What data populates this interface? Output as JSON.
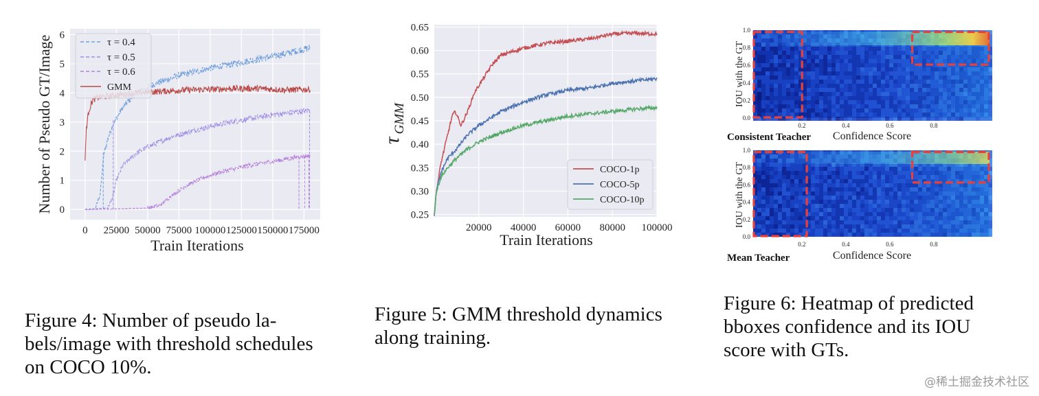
{
  "chart_data": [
    {
      "type": "line",
      "figure": "Figure 4",
      "xlabel": "Train Iterations",
      "ylabel": "Number of Pseudo GT/Image",
      "xlim": [
        -12000,
        188000
      ],
      "ylim": [
        -0.35,
        6.2
      ],
      "xticks": [
        0,
        25000,
        50000,
        75000,
        100000,
        125000,
        150000,
        175000
      ],
      "xtick_labels": [
        "0",
        "25000",
        "50000",
        "75000",
        "100000",
        "125000",
        "150000",
        "175000"
      ],
      "yticks": [
        0,
        1,
        2,
        3,
        4,
        5,
        6
      ],
      "ytick_labels": [
        "0",
        "1",
        "2",
        "3",
        "4",
        "5",
        "6"
      ],
      "grid": true,
      "background": "#eaeaf2",
      "legend_position": "top-left",
      "series": [
        {
          "name": "τ = 0.4",
          "color": "#6f9fdc",
          "dash": true,
          "x": [
            0,
            8000,
            12000,
            15000,
            18000,
            22000,
            30000,
            40000,
            55000,
            75000,
            100000,
            125000,
            150000,
            170000,
            180000
          ],
          "y": [
            0,
            0.02,
            0.5,
            1.9,
            2.4,
            2.9,
            3.5,
            3.95,
            4.3,
            4.6,
            4.85,
            5.05,
            5.25,
            5.45,
            5.55
          ]
        },
        {
          "name": "τ = 0.5",
          "color": "#a08de8",
          "dash": true,
          "x": [
            0,
            10000,
            18000,
            22000,
            25000,
            30000,
            40000,
            50000,
            70000,
            90000,
            110000,
            130000,
            150000,
            170000,
            180000
          ],
          "y": [
            0,
            0.02,
            0.05,
            0.4,
            1.0,
            1.5,
            1.9,
            2.15,
            2.5,
            2.75,
            2.95,
            3.1,
            3.25,
            3.35,
            3.4
          ]
        },
        {
          "name": "τ = 0.6",
          "color": "#b57fdb",
          "dash": true,
          "x": [
            0,
            30000,
            50000,
            60000,
            70000,
            80000,
            95000,
            110000,
            130000,
            150000,
            170000,
            180000
          ],
          "y": [
            0,
            0.02,
            0.05,
            0.15,
            0.5,
            0.8,
            1.1,
            1.3,
            1.5,
            1.65,
            1.8,
            1.85
          ]
        },
        {
          "name": "GMM",
          "color": "#b94a48",
          "dash": false,
          "x": [
            0,
            1000,
            3000,
            6000,
            10000,
            20000,
            40000,
            60000,
            80000,
            100000,
            120000,
            140000,
            160000,
            180000
          ],
          "y": [
            1.7,
            2.8,
            3.4,
            3.75,
            3.85,
            3.9,
            4.0,
            4.05,
            4.1,
            4.12,
            4.15,
            4.15,
            4.1,
            4.12
          ]
        }
      ]
    },
    {
      "type": "line",
      "figure": "Figure 5",
      "xlabel": "Train Iterations",
      "ylabel": "τ",
      "ylabel_sub": "GMM",
      "xlim": [
        0,
        100000
      ],
      "ylim": [
        0.245,
        0.655
      ],
      "xticks": [
        20000,
        40000,
        60000,
        80000,
        100000
      ],
      "xtick_labels": [
        "20000",
        "40000",
        "60000",
        "80000",
        "100000"
      ],
      "yticks": [
        0.25,
        0.3,
        0.35,
        0.4,
        0.45,
        0.5,
        0.55,
        0.6,
        0.65
      ],
      "ytick_labels": [
        "0.25",
        "0.30",
        "0.35",
        "0.40",
        "0.45",
        "0.50",
        "0.55",
        "0.60",
        "0.65"
      ],
      "grid": true,
      "background": "#eaeaf2",
      "legend_position": "bottom-right",
      "series": [
        {
          "name": "COCO-1p",
          "color": "#c44e52",
          "x": [
            0,
            1000,
            3000,
            6000,
            8000,
            9500,
            12000,
            15000,
            18000,
            22000,
            26000,
            30000,
            40000,
            50000,
            60000,
            70000,
            80000,
            90000,
            100000
          ],
          "y": [
            0.25,
            0.3,
            0.36,
            0.42,
            0.46,
            0.47,
            0.44,
            0.47,
            0.51,
            0.54,
            0.57,
            0.59,
            0.605,
            0.615,
            0.62,
            0.625,
            0.635,
            0.637,
            0.635
          ]
        },
        {
          "name": "COCO-5p",
          "color": "#4c72b0",
          "x": [
            0,
            1000,
            3000,
            6000,
            10000,
            15000,
            20000,
            30000,
            40000,
            50000,
            60000,
            70000,
            80000,
            90000,
            100000
          ],
          "y": [
            0.25,
            0.3,
            0.34,
            0.37,
            0.39,
            0.42,
            0.44,
            0.47,
            0.49,
            0.505,
            0.515,
            0.52,
            0.53,
            0.535,
            0.54
          ]
        },
        {
          "name": "COCO-10p",
          "color": "#55a868",
          "x": [
            0,
            1000,
            3000,
            6000,
            10000,
            15000,
            20000,
            30000,
            40000,
            50000,
            60000,
            70000,
            80000,
            90000,
            100000
          ],
          "y": [
            0.25,
            0.3,
            0.33,
            0.35,
            0.37,
            0.39,
            0.405,
            0.425,
            0.44,
            0.45,
            0.46,
            0.465,
            0.47,
            0.475,
            0.478
          ]
        }
      ]
    },
    {
      "type": "heatmap",
      "figure": "Figure 6",
      "panels": [
        {
          "name": "Consistent Teacher",
          "xlabel": "Confidence Score",
          "ylabel": "IOU with the GT",
          "xticks": [
            0.2,
            0.4,
            0.6,
            0.8
          ],
          "xtick_labels": [
            "0.2",
            "0.4",
            "0.6",
            "0.8"
          ],
          "yticks": [
            0.0,
            0.2,
            0.4,
            0.6,
            0.8,
            1.0
          ],
          "ytick_labels": [
            "0.0",
            "0.2",
            "0.4",
            "0.6",
            "0.8",
            "1.0"
          ],
          "boxes": [
            {
              "x0": 0.0,
              "x1": 0.21,
              "y0": 0.0,
              "y1": 0.98
            },
            {
              "x0": 0.67,
              "x1": 1.0,
              "y0": 0.6,
              "y1": 0.98
            }
          ]
        },
        {
          "name": "Mean Teacher",
          "xlabel": "Confidence Score",
          "ylabel": "IOU with the GT",
          "xticks": [
            0.2,
            0.4,
            0.6,
            0.8
          ],
          "xtick_labels": [
            "0.2",
            "0.4",
            "0.6",
            "0.8"
          ],
          "yticks": [
            0.0,
            0.2,
            0.4,
            0.6,
            0.8,
            1.0
          ],
          "ytick_labels": [
            "0.0",
            "0.2",
            "0.4",
            "0.6",
            "0.8",
            "1.0"
          ],
          "boxes": [
            {
              "x0": 0.0,
              "x1": 0.23,
              "y0": 0.0,
              "y1": 0.98
            },
            {
              "x0": 0.67,
              "x1": 1.0,
              "y0": 0.62,
              "y1": 0.98
            }
          ]
        }
      ]
    }
  ],
  "captions": {
    "fig4": [
      "Figure 4:  Number of pseudo la-",
      "bels/image with threshold schedules",
      "on COCO 10%."
    ],
    "fig5": [
      "Figure 5: GMM threshold dynamics",
      "along training."
    ],
    "fig6": [
      "Figure 6: Heatmap of predicted",
      "bboxes confidence and its IOU",
      "score with GTs."
    ]
  },
  "watermark": "@稀土掘金技术社区"
}
